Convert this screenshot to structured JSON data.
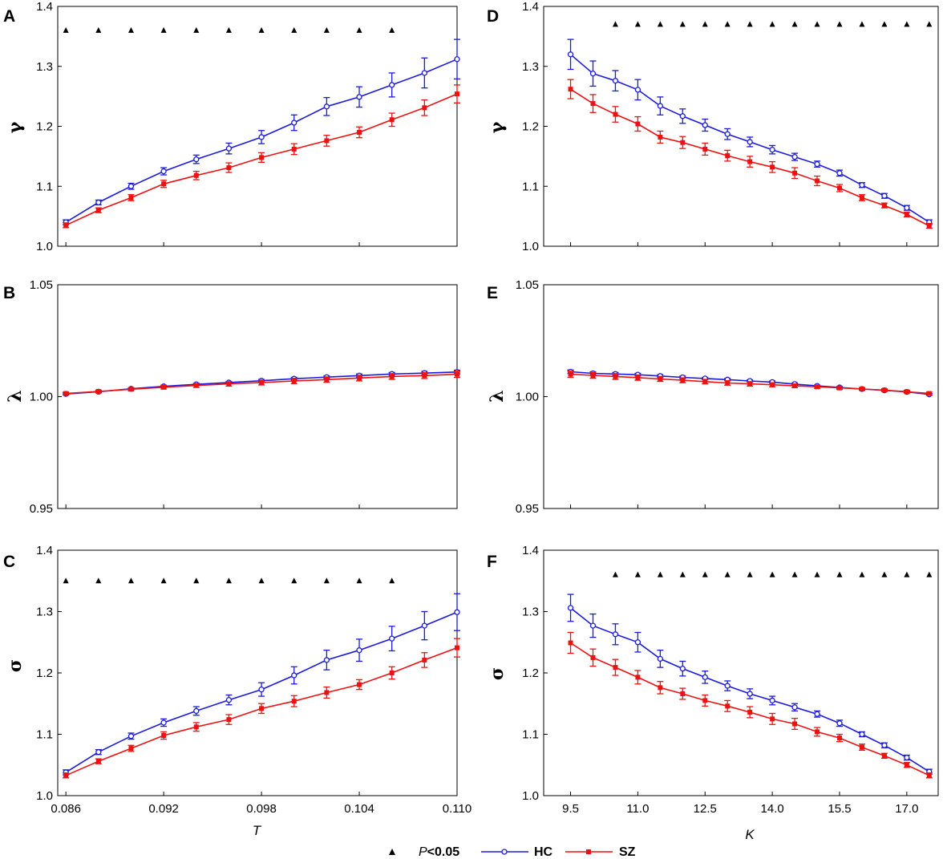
{
  "figure": {
    "legend": {
      "p_prefix": "P",
      "p_suffix": "<0.05",
      "hc_label": "HC",
      "sz_label": "SZ"
    },
    "colors": {
      "hc": "#1a1adf",
      "sz": "#ee1111",
      "axis": "#000000",
      "marker": "#000000"
    }
  },
  "chart_data": [
    {
      "id": "A",
      "letter": "A",
      "type": "line",
      "ylabel": "γ",
      "xlabel": "",
      "ylim": [
        1.0,
        1.4
      ],
      "yticks": [
        "1.0",
        "1.1",
        "1.2",
        "1.3",
        "1.4"
      ],
      "x": [
        0.086,
        0.088,
        0.09,
        0.092,
        0.094,
        0.096,
        0.098,
        0.1,
        0.102,
        0.104,
        0.106,
        0.108,
        0.11
      ],
      "xlim": [
        0.0855,
        0.11
      ],
      "xticks": [],
      "xtick_values": [
        0.086,
        0.092,
        0.098,
        0.104,
        0.11
      ],
      "series": [
        {
          "name": "HC",
          "values": [
            1.04,
            1.073,
            1.1,
            1.125,
            1.145,
            1.163,
            1.182,
            1.206,
            1.233,
            1.249,
            1.269,
            1.289,
            1.312
          ],
          "errors": [
            0.004,
            0.004,
            0.005,
            0.006,
            0.007,
            0.009,
            0.011,
            0.013,
            0.015,
            0.017,
            0.02,
            0.025,
            0.033
          ]
        },
        {
          "name": "SZ",
          "values": [
            1.035,
            1.06,
            1.081,
            1.104,
            1.118,
            1.131,
            1.148,
            1.162,
            1.176,
            1.19,
            1.211,
            1.231,
            1.254
          ],
          "errors": [
            0.004,
            0.004,
            0.005,
            0.006,
            0.007,
            0.008,
            0.008,
            0.009,
            0.009,
            0.009,
            0.011,
            0.013,
            0.015
          ]
        }
      ],
      "significance": {
        "x": [
          0.086,
          0.088,
          0.09,
          0.092,
          0.094,
          0.096,
          0.098,
          0.1,
          0.102,
          0.104,
          0.106
        ],
        "y": 1.36
      }
    },
    {
      "id": "B",
      "letter": "B",
      "type": "line",
      "ylabel": "λ",
      "xlabel": "",
      "ylim": [
        0.95,
        1.05
      ],
      "yticks": [
        "0.95",
        "1.00",
        "1.05"
      ],
      "x": [
        0.086,
        0.088,
        0.09,
        0.092,
        0.094,
        0.096,
        0.098,
        0.1,
        0.102,
        0.104,
        0.106,
        0.108,
        0.11
      ],
      "xlim": [
        0.0855,
        0.11
      ],
      "xticks": [],
      "xtick_values": [
        0.086,
        0.092,
        0.098,
        0.104,
        0.11
      ],
      "series": [
        {
          "name": "HC",
          "values": [
            1.0012,
            1.0022,
            1.0035,
            1.0046,
            1.0055,
            1.0063,
            1.0071,
            1.008,
            1.0087,
            1.0094,
            1.0101,
            1.0105,
            1.011
          ],
          "errors": [
            0.0004,
            0.0004,
            0.0004,
            0.0005,
            0.0005,
            0.0005,
            0.0006,
            0.0006,
            0.0006,
            0.0007,
            0.0007,
            0.0008,
            0.0008
          ]
        },
        {
          "name": "SZ",
          "values": [
            1.0014,
            1.0023,
            1.0033,
            1.0042,
            1.005,
            1.0057,
            1.0063,
            1.007,
            1.0076,
            1.0083,
            1.009,
            1.0094,
            1.01
          ],
          "errors": [
            0.0006,
            0.0006,
            0.0007,
            0.0008,
            0.0009,
            0.001,
            0.0011,
            0.0012,
            0.0012,
            0.0013,
            0.0013,
            0.0013,
            0.0014
          ]
        }
      ],
      "significance": {
        "x": [],
        "y": 1.04
      }
    },
    {
      "id": "C",
      "letter": "C",
      "type": "line",
      "ylabel": "σ",
      "xlabel": "T",
      "ylim": [
        1.0,
        1.4
      ],
      "yticks": [
        "1.0",
        "1.1",
        "1.2",
        "1.3",
        "1.4"
      ],
      "x": [
        0.086,
        0.088,
        0.09,
        0.092,
        0.094,
        0.096,
        0.098,
        0.1,
        0.102,
        0.104,
        0.106,
        0.108,
        0.11
      ],
      "xlim": [
        0.0855,
        0.11
      ],
      "xticks": [
        "0.086",
        "0.092",
        "0.098",
        "0.104",
        "0.110"
      ],
      "xtick_values": [
        0.086,
        0.092,
        0.098,
        0.104,
        0.11
      ],
      "series": [
        {
          "name": "HC",
          "values": [
            1.038,
            1.071,
            1.097,
            1.119,
            1.138,
            1.156,
            1.173,
            1.196,
            1.221,
            1.237,
            1.256,
            1.277,
            1.299
          ],
          "errors": [
            0.004,
            0.004,
            0.005,
            0.006,
            0.007,
            0.008,
            0.011,
            0.014,
            0.016,
            0.018,
            0.02,
            0.023,
            0.03
          ]
        },
        {
          "name": "SZ",
          "values": [
            1.033,
            1.056,
            1.077,
            1.098,
            1.112,
            1.124,
            1.142,
            1.154,
            1.168,
            1.181,
            1.2,
            1.221,
            1.241
          ],
          "errors": [
            0.004,
            0.004,
            0.005,
            0.006,
            0.007,
            0.008,
            0.008,
            0.009,
            0.009,
            0.008,
            0.01,
            0.012,
            0.015
          ]
        }
      ],
      "significance": {
        "x": [
          0.086,
          0.088,
          0.09,
          0.092,
          0.094,
          0.096,
          0.098,
          0.1,
          0.102,
          0.104,
          0.106
        ],
        "y": 1.35
      }
    },
    {
      "id": "D",
      "letter": "D",
      "type": "line",
      "ylabel": "γ",
      "xlabel": "",
      "ylim": [
        1.0,
        1.4
      ],
      "yticks": [
        "1.0",
        "1.1",
        "1.2",
        "1.3",
        "1.4"
      ],
      "x": [
        9.5,
        10.0,
        10.5,
        11.0,
        11.5,
        12.0,
        12.5,
        13.0,
        13.5,
        14.0,
        14.5,
        15.0,
        15.5,
        16.0,
        16.5,
        17.0,
        17.5
      ],
      "xlim": [
        8.9,
        17.7
      ],
      "xticks": [],
      "xtick_values": [
        9.5,
        11.0,
        12.5,
        14.0,
        15.5,
        17.0
      ],
      "series": [
        {
          "name": "HC",
          "values": [
            1.32,
            1.288,
            1.276,
            1.261,
            1.234,
            1.217,
            1.202,
            1.187,
            1.174,
            1.161,
            1.149,
            1.137,
            1.122,
            1.102,
            1.084,
            1.064,
            1.04
          ],
          "errors": [
            0.025,
            0.021,
            0.017,
            0.017,
            0.015,
            0.012,
            0.01,
            0.009,
            0.008,
            0.007,
            0.006,
            0.005,
            0.005,
            0.004,
            0.004,
            0.004,
            0.004
          ]
        },
        {
          "name": "SZ",
          "values": [
            1.262,
            1.238,
            1.22,
            1.204,
            1.182,
            1.173,
            1.162,
            1.151,
            1.141,
            1.132,
            1.122,
            1.109,
            1.097,
            1.081,
            1.068,
            1.053,
            1.034
          ],
          "errors": [
            0.016,
            0.015,
            0.013,
            0.012,
            0.01,
            0.01,
            0.01,
            0.009,
            0.009,
            0.009,
            0.009,
            0.008,
            0.006,
            0.005,
            0.004,
            0.004,
            0.004
          ]
        }
      ],
      "significance": {
        "x": [
          10.5,
          11.0,
          11.5,
          12.0,
          12.5,
          13.0,
          13.5,
          14.0,
          14.5,
          15.0,
          15.5,
          16.0,
          16.5,
          17.0,
          17.5
        ],
        "y": 1.37
      }
    },
    {
      "id": "E",
      "letter": "E",
      "type": "line",
      "ylabel": "λ",
      "xlabel": "",
      "ylim": [
        0.95,
        1.05
      ],
      "yticks": [
        "0.95",
        "1.00",
        "1.05"
      ],
      "x": [
        9.5,
        10.0,
        10.5,
        11.0,
        11.5,
        12.0,
        12.5,
        13.0,
        13.5,
        14.0,
        14.5,
        15.0,
        15.5,
        16.0,
        16.5,
        17.0,
        17.5
      ],
      "xlim": [
        8.9,
        17.7
      ],
      "xticks": [],
      "xtick_values": [
        9.5,
        11.0,
        12.5,
        14.0,
        15.5,
        17.0
      ],
      "series": [
        {
          "name": "HC",
          "values": [
            1.0111,
            1.0104,
            1.0101,
            1.0098,
            1.0092,
            1.0086,
            1.0081,
            1.0076,
            1.007,
            1.0065,
            1.0056,
            1.0048,
            1.0041,
            1.0034,
            1.0028,
            1.0021,
            1.001
          ],
          "errors": [
            0.0008,
            0.0007,
            0.0007,
            0.0006,
            0.0006,
            0.0006,
            0.0005,
            0.0005,
            0.0005,
            0.0005,
            0.0005,
            0.0004,
            0.0004,
            0.0004,
            0.0004,
            0.0004,
            0.0004
          ]
        },
        {
          "name": "SZ",
          "values": [
            1.01,
            1.0095,
            1.009,
            1.0085,
            1.0079,
            1.0073,
            1.0067,
            1.0061,
            1.0057,
            1.0053,
            1.0048,
            1.0044,
            1.0039,
            1.0034,
            1.0029,
            1.0022,
            1.0014
          ],
          "errors": [
            0.0014,
            0.0013,
            0.0013,
            0.0012,
            0.0011,
            0.0011,
            0.001,
            0.001,
            0.001,
            0.0009,
            0.0008,
            0.0007,
            0.0007,
            0.0006,
            0.0006,
            0.0006,
            0.0006
          ]
        }
      ],
      "significance": {
        "x": [],
        "y": 1.04
      }
    },
    {
      "id": "F",
      "letter": "F",
      "type": "line",
      "ylabel": "σ",
      "xlabel": "K",
      "ylim": [
        1.0,
        1.4
      ],
      "yticks": [
        "1.0",
        "1.1",
        "1.2",
        "1.3",
        "1.4"
      ],
      "x": [
        9.5,
        10.0,
        10.5,
        11.0,
        11.5,
        12.0,
        12.5,
        13.0,
        13.5,
        14.0,
        14.5,
        15.0,
        15.5,
        16.0,
        16.5,
        17.0,
        17.5
      ],
      "xlim": [
        8.9,
        17.7
      ],
      "xticks": [
        "9.5",
        "11.0",
        "12.5",
        "14.0",
        "15.5",
        "17.0"
      ],
      "xtick_values": [
        9.5,
        11.0,
        12.5,
        14.0,
        15.5,
        17.0
      ],
      "series": [
        {
          "name": "HC",
          "values": [
            1.306,
            1.277,
            1.263,
            1.25,
            1.223,
            1.207,
            1.193,
            1.179,
            1.166,
            1.155,
            1.144,
            1.133,
            1.118,
            1.1,
            1.082,
            1.062,
            1.039
          ],
          "errors": [
            0.022,
            0.019,
            0.017,
            0.016,
            0.014,
            0.012,
            0.01,
            0.008,
            0.008,
            0.007,
            0.006,
            0.005,
            0.005,
            0.004,
            0.004,
            0.004,
            0.004
          ]
        },
        {
          "name": "SZ",
          "values": [
            1.249,
            1.225,
            1.209,
            1.193,
            1.176,
            1.166,
            1.155,
            1.146,
            1.136,
            1.125,
            1.117,
            1.104,
            1.094,
            1.079,
            1.065,
            1.05,
            1.033
          ],
          "errors": [
            0.017,
            0.014,
            0.013,
            0.011,
            0.01,
            0.009,
            0.009,
            0.009,
            0.009,
            0.009,
            0.009,
            0.007,
            0.006,
            0.005,
            0.004,
            0.004,
            0.004
          ]
        }
      ],
      "significance": {
        "x": [
          10.5,
          11.0,
          11.5,
          12.0,
          12.5,
          13.0,
          13.5,
          14.0,
          14.5,
          15.0,
          15.5,
          16.0,
          16.5,
          17.0,
          17.5
        ],
        "y": 1.36
      }
    }
  ]
}
